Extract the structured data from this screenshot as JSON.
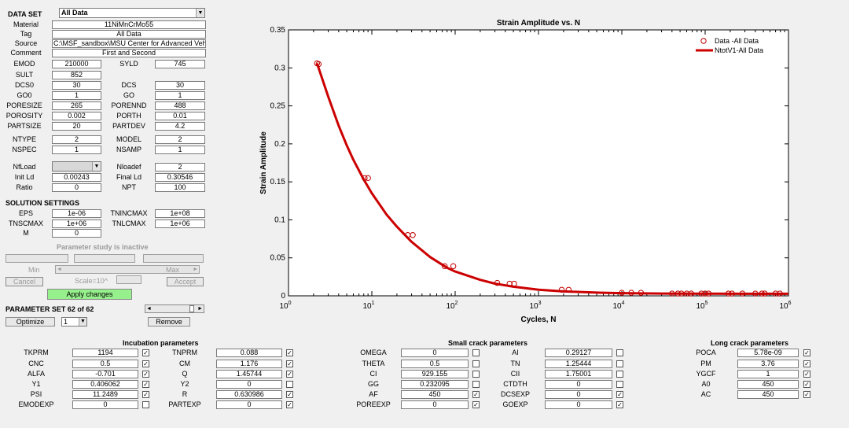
{
  "dataset": {
    "label": "DATA SET",
    "selected": "All Data"
  },
  "info": [
    {
      "label": "Material",
      "value": "11NiMnCrMo55"
    },
    {
      "label": "Tag",
      "value": "All Data"
    },
    {
      "label": "Source",
      "value": "C:\\MSF_sandbox\\MSU Center for Advanced Vehicular Systems"
    },
    {
      "label": "Comment",
      "value": "First and Second"
    }
  ],
  "pairs": [
    {
      "l1": "EMOD",
      "v1": "210000",
      "l2": "SYLD",
      "v2": "745"
    },
    {
      "l1": "SULT",
      "v1": "852",
      "l2": "",
      "v2": ""
    },
    {
      "l1": "DCS0",
      "v1": "30",
      "l2": "DCS",
      "v2": "30"
    },
    {
      "l1": "GO0",
      "v1": "1",
      "l2": "GO",
      "v2": "1"
    },
    {
      "l1": "PORESIZE",
      "v1": "265",
      "l2": "PORENND",
      "v2": "488"
    },
    {
      "l1": "POROSITY",
      "v1": "0.002",
      "l2": "PORTH",
      "v2": "0.01"
    },
    {
      "l1": "PARTSIZE",
      "v1": "20",
      "l2": "PARTDEV",
      "v2": "4.2"
    },
    {
      "l1": "NTYPE",
      "v1": "2",
      "l2": "MODEL",
      "v2": "2"
    },
    {
      "l1": "NSPEC",
      "v1": "1",
      "l2": "NSAMP",
      "v2": "1"
    },
    {
      "l1": "NfLoad",
      "v1": "",
      "l2": "Nloadef",
      "v2": "2"
    },
    {
      "l1": "Init Ld",
      "v1": "0.00243",
      "l2": "Final Ld",
      "v2": "0.30546"
    },
    {
      "l1": "Ratio",
      "v1": "0",
      "l2": "NPT",
      "v2": "100"
    }
  ],
  "solution": {
    "title": "SOLUTION SETTINGS",
    "rows": [
      {
        "l1": "EPS",
        "v1": "1e-06",
        "l2": "TNINCMAX",
        "v2": "1e+08"
      },
      {
        "l1": "TNSCMAX",
        "v1": "1e+06",
        "l2": "TNLCMAX",
        "v2": "1e+06"
      },
      {
        "l1": "M",
        "v1": "0",
        "l2": "",
        "v2": ""
      }
    ]
  },
  "param_study": {
    "status": "Parameter study is inactive",
    "min_label": "Min",
    "max_label": "Max",
    "cancel_label": "Cancel",
    "scale_label": "Scale=10^",
    "accept_label": "Accept",
    "apply_label": "Apply changes"
  },
  "param_set": {
    "label": "PARAMETER SET 62 of 62",
    "optimize_label": "Optimize",
    "select_value": "1",
    "remove_label": "Remove"
  },
  "chart_data": {
    "type": "scatter",
    "title": "Strain Amplitude vs. N",
    "xlabel": "Cycles, N",
    "ylabel": "Strain Amplitude",
    "xscale": "log",
    "xlim": [
      1,
      1000000
    ],
    "ylim": [
      0,
      0.35
    ],
    "x_ticks": [
      "10",
      "10",
      "10",
      "10",
      "10",
      "10",
      "10"
    ],
    "x_tick_exps": [
      "0",
      "1",
      "2",
      "3",
      "4",
      "5",
      "6"
    ],
    "y_ticks": [
      "0",
      "0.05",
      "0.1",
      "0.15",
      "0.2",
      "0.25",
      "0.3",
      "0.35"
    ],
    "legend_position": "top-right",
    "legend": [
      {
        "name": "Data -All Data",
        "style": "marker"
      },
      {
        "name": "NtotV1-All Data",
        "style": "line"
      }
    ],
    "series": [
      {
        "name": "Data -All Data",
        "color": "#c00000",
        "points": [
          [
            2.2,
            0.306
          ],
          [
            2.3,
            0.305
          ],
          [
            8.2,
            0.155
          ],
          [
            9.0,
            0.155
          ],
          [
            27,
            0.08
          ],
          [
            31,
            0.08
          ],
          [
            75,
            0.039
          ],
          [
            95,
            0.039
          ],
          [
            320,
            0.017
          ],
          [
            450,
            0.016
          ],
          [
            510,
            0.016
          ],
          [
            1900,
            0.008
          ],
          [
            2300,
            0.008
          ],
          [
            10000,
            0.004
          ],
          [
            13000,
            0.004
          ],
          [
            17000,
            0.004
          ],
          [
            40000,
            0.003
          ],
          [
            47000,
            0.003
          ],
          [
            52000,
            0.003
          ],
          [
            60000,
            0.003
          ],
          [
            68000,
            0.003
          ],
          [
            90000,
            0.003
          ],
          [
            100000,
            0.003
          ],
          [
            110000,
            0.003
          ],
          [
            190000,
            0.003
          ],
          [
            210000,
            0.003
          ],
          [
            280000,
            0.003
          ],
          [
            400000,
            0.003
          ],
          [
            480000,
            0.003
          ],
          [
            520000,
            0.003
          ],
          [
            700000,
            0.003
          ],
          [
            790000,
            0.003
          ]
        ]
      },
      {
        "name": "NtotV1-All Data",
        "color": "#cc0000",
        "x": [
          2.2,
          3,
          4,
          5,
          6,
          8,
          10,
          15,
          20,
          30,
          50,
          80,
          100,
          200,
          300,
          500,
          1000,
          2000,
          5000,
          10000,
          30000,
          100000,
          300000,
          1000000
        ],
        "y": [
          0.306,
          0.262,
          0.224,
          0.198,
          0.179,
          0.153,
          0.135,
          0.107,
          0.091,
          0.071,
          0.051,
          0.037,
          0.032,
          0.021,
          0.016,
          0.012,
          0.008,
          0.0058,
          0.0042,
          0.0035,
          0.003,
          0.0028,
          0.0027,
          0.0027
        ]
      }
    ]
  },
  "incubation": {
    "title": "Incubation parameters",
    "rows": [
      {
        "l1": "TKPRM",
        "v1": "1194",
        "c1": true,
        "l2": "TNPRM",
        "v2": "0.088",
        "c2": true
      },
      {
        "l1": "CNC",
        "v1": "0.5",
        "c1": true,
        "l2": "CM",
        "v2": "1.176",
        "c2": true
      },
      {
        "l1": "ALFA",
        "v1": "-0.701",
        "c1": true,
        "l2": "Q",
        "v2": "1.45744",
        "c2": true
      },
      {
        "l1": "Y1",
        "v1": "0.406062",
        "c1": true,
        "l2": "Y2",
        "v2": "0",
        "c2": false
      },
      {
        "l1": "PSI",
        "v1": "11.2489",
        "c1": true,
        "l2": "R",
        "v2": "0.630986",
        "c2": true
      },
      {
        "l1": "EMODEXP",
        "v1": "0",
        "c1": false,
        "l2": "PARTEXP",
        "v2": "0",
        "c2": true
      }
    ]
  },
  "small_crack": {
    "title": "Small crack parameters",
    "rows": [
      {
        "l1": "OMEGA",
        "v1": "0",
        "c1": false,
        "l2": "AI",
        "v2": "0.29127",
        "c2": false
      },
      {
        "l1": "THETA",
        "v1": "0.5",
        "c1": false,
        "l2": "TN",
        "v2": "1.25444",
        "c2": false
      },
      {
        "l1": "CI",
        "v1": "929.155",
        "c1": false,
        "l2": "CII",
        "v2": "1.75001",
        "c2": false
      },
      {
        "l1": "GG",
        "v1": "0.232095",
        "c1": false,
        "l2": "CTDTH",
        "v2": "0",
        "c2": false
      },
      {
        "l1": "AF",
        "v1": "450",
        "c1": true,
        "l2": "DCSEXP",
        "v2": "0",
        "c2": true
      },
      {
        "l1": "POREEXP",
        "v1": "0",
        "c1": true,
        "l2": "GOEXP",
        "v2": "0",
        "c2": true
      }
    ]
  },
  "long_crack": {
    "title": "Long crack parameters",
    "rows": [
      {
        "l1": "POCA",
        "v1": "5.78e-09",
        "c1": true
      },
      {
        "l1": "PM",
        "v1": "3.76",
        "c1": true
      },
      {
        "l1": "YGCF",
        "v1": "1",
        "c1": true
      },
      {
        "l1": "A0",
        "v1": "450",
        "c1": true
      },
      {
        "l1": "AC",
        "v1": "450",
        "c1": true
      }
    ]
  }
}
